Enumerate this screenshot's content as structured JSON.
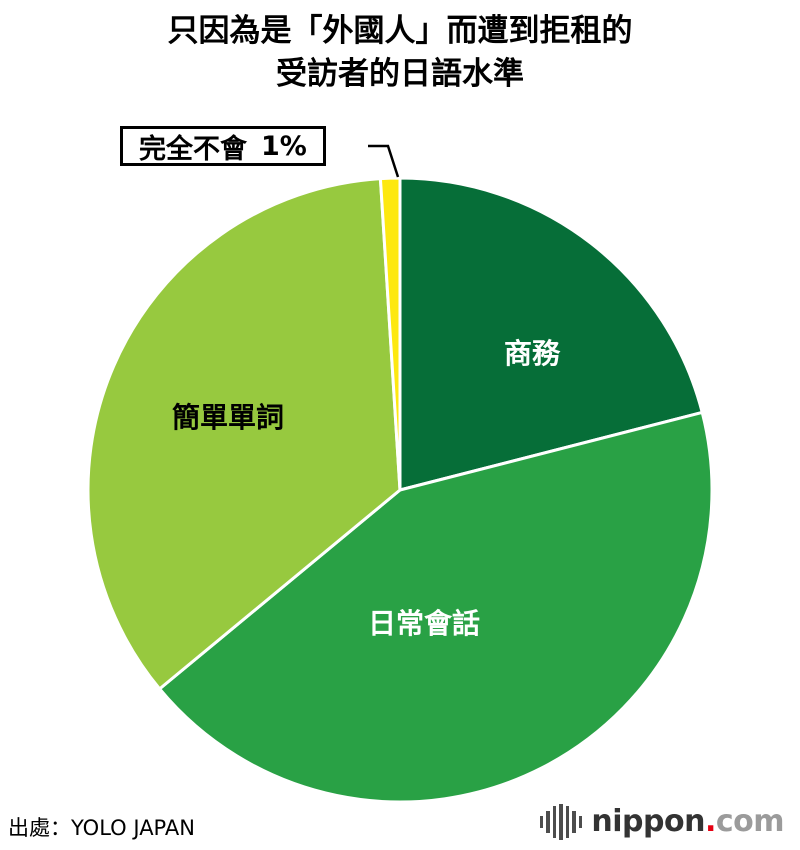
{
  "title": {
    "line1": "只因為是「外國人」而遭到拒租的",
    "line2": "受訪者的日語水準"
  },
  "source": "出處：YOLO JAPAN",
  "logo": {
    "brand": "nippon",
    "dot": ".",
    "tld": "com",
    "brand_color": "#333333",
    "dot_color": "#e60012",
    "tld_color": "#9b9b9b"
  },
  "chart_data": {
    "type": "pie",
    "title": "只因為是「外國人」而遭到拒租的受訪者的日語水準",
    "labels": [
      "商務",
      "日常會話",
      "簡單單詞",
      "完全不會"
    ],
    "values": [
      21,
      43,
      35,
      1
    ],
    "unit": "%",
    "colors": [
      "#066e38",
      "#29a145",
      "#97c93f",
      "#fde810"
    ],
    "label_text_colors": [
      "#ffffff",
      "#ffffff",
      "#000000",
      "#000000"
    ],
    "start_angle": "top",
    "direction": "clockwise",
    "legend": "none",
    "callout": {
      "label": "完全不會",
      "percent": "1%"
    },
    "source": "出處：YOLO JAPAN"
  }
}
